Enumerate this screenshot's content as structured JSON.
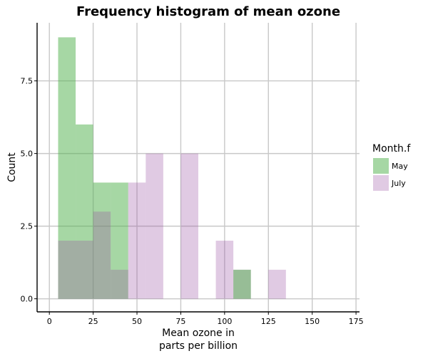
{
  "chart_data": {
    "type": "bar",
    "title": "Frequency histogram of mean ozone",
    "xlabel_lines": [
      "Mean ozone in",
      "parts per billion"
    ],
    "ylabel": "Count",
    "xlim": [
      -7,
      177
    ],
    "ylim": [
      -0.45,
      9.5
    ],
    "xticks": [
      0,
      25,
      50,
      75,
      100,
      125,
      150,
      175
    ],
    "yticks": [
      0,
      2.5,
      5.0,
      7.5
    ],
    "ytick_labels": [
      "0.0",
      "2.5",
      "5.0",
      "7.5"
    ],
    "grid": true,
    "legend_position": "right",
    "legend_title": "Month.f",
    "bin_width": 10,
    "series": [
      {
        "name": "May",
        "color": "#4daf4a",
        "opacity": 0.5,
        "bins": [
          {
            "x0": 5,
            "x1": 15,
            "count": 9
          },
          {
            "x0": 15,
            "x1": 25,
            "count": 6
          },
          {
            "x0": 25,
            "x1": 35,
            "count": 4
          },
          {
            "x0": 35,
            "x1": 45,
            "count": 4
          }
        ]
      },
      {
        "name": "July",
        "color": "#984ea3",
        "opacity": 0.3,
        "bins": [
          {
            "x0": 5,
            "x1": 15,
            "count": 2
          },
          {
            "x0": 15,
            "x1": 25,
            "count": 2
          },
          {
            "x0": 25,
            "x1": 35,
            "count": 3
          },
          {
            "x0": 35,
            "x1": 45,
            "count": 1
          },
          {
            "x0": 45,
            "x1": 55,
            "count": 4
          },
          {
            "x0": 55,
            "x1": 65,
            "count": 5
          },
          {
            "x0": 75,
            "x1": 85,
            "count": 5
          },
          {
            "x0": 95,
            "x1": 105,
            "count": 2
          },
          {
            "x0": 105,
            "x1": 115,
            "count": 1
          },
          {
            "x0": 125,
            "x1": 135,
            "count": 1
          }
        ]
      }
    ]
  },
  "legend_overlay_extra": [
    {
      "x0": 105,
      "x1": 115,
      "count": 1,
      "color": "#4daf4a",
      "opacity": 0.5
    }
  ]
}
